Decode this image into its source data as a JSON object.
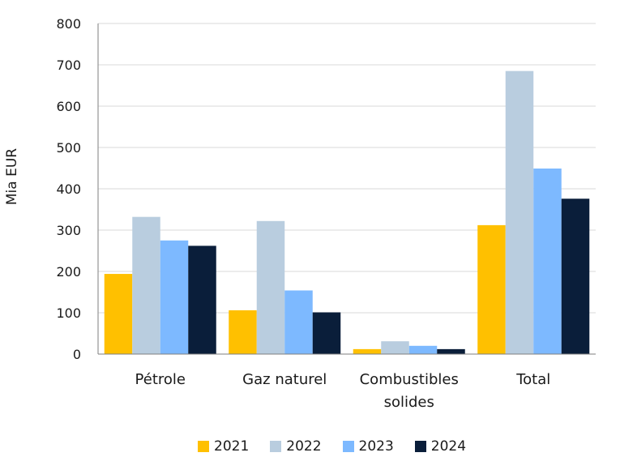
{
  "chart_data": {
    "type": "bar",
    "ylabel": "Mia EUR",
    "ylim": [
      0,
      800
    ],
    "yticks": [
      "0",
      "100",
      "200",
      "300",
      "400",
      "500",
      "600",
      "700",
      "800"
    ],
    "categories": [
      [
        "Pétrole"
      ],
      [
        "Gaz naturel"
      ],
      [
        "Combustibles",
        "solides"
      ],
      [
        "Total"
      ]
    ],
    "series": [
      {
        "name": "2021",
        "color": "#FFC000",
        "values": [
          194,
          106,
          12,
          312
        ]
      },
      {
        "name": "2022",
        "color": "#B9CDDF",
        "values": [
          332,
          322,
          31,
          685
        ]
      },
      {
        "name": "2023",
        "color": "#7DB9FF",
        "values": [
          275,
          154,
          20,
          449
        ]
      },
      {
        "name": "2024",
        "color": "#0A1E3A",
        "values": [
          262,
          101,
          12,
          376
        ]
      }
    ],
    "grid": true,
    "legend_position": "bottom"
  }
}
